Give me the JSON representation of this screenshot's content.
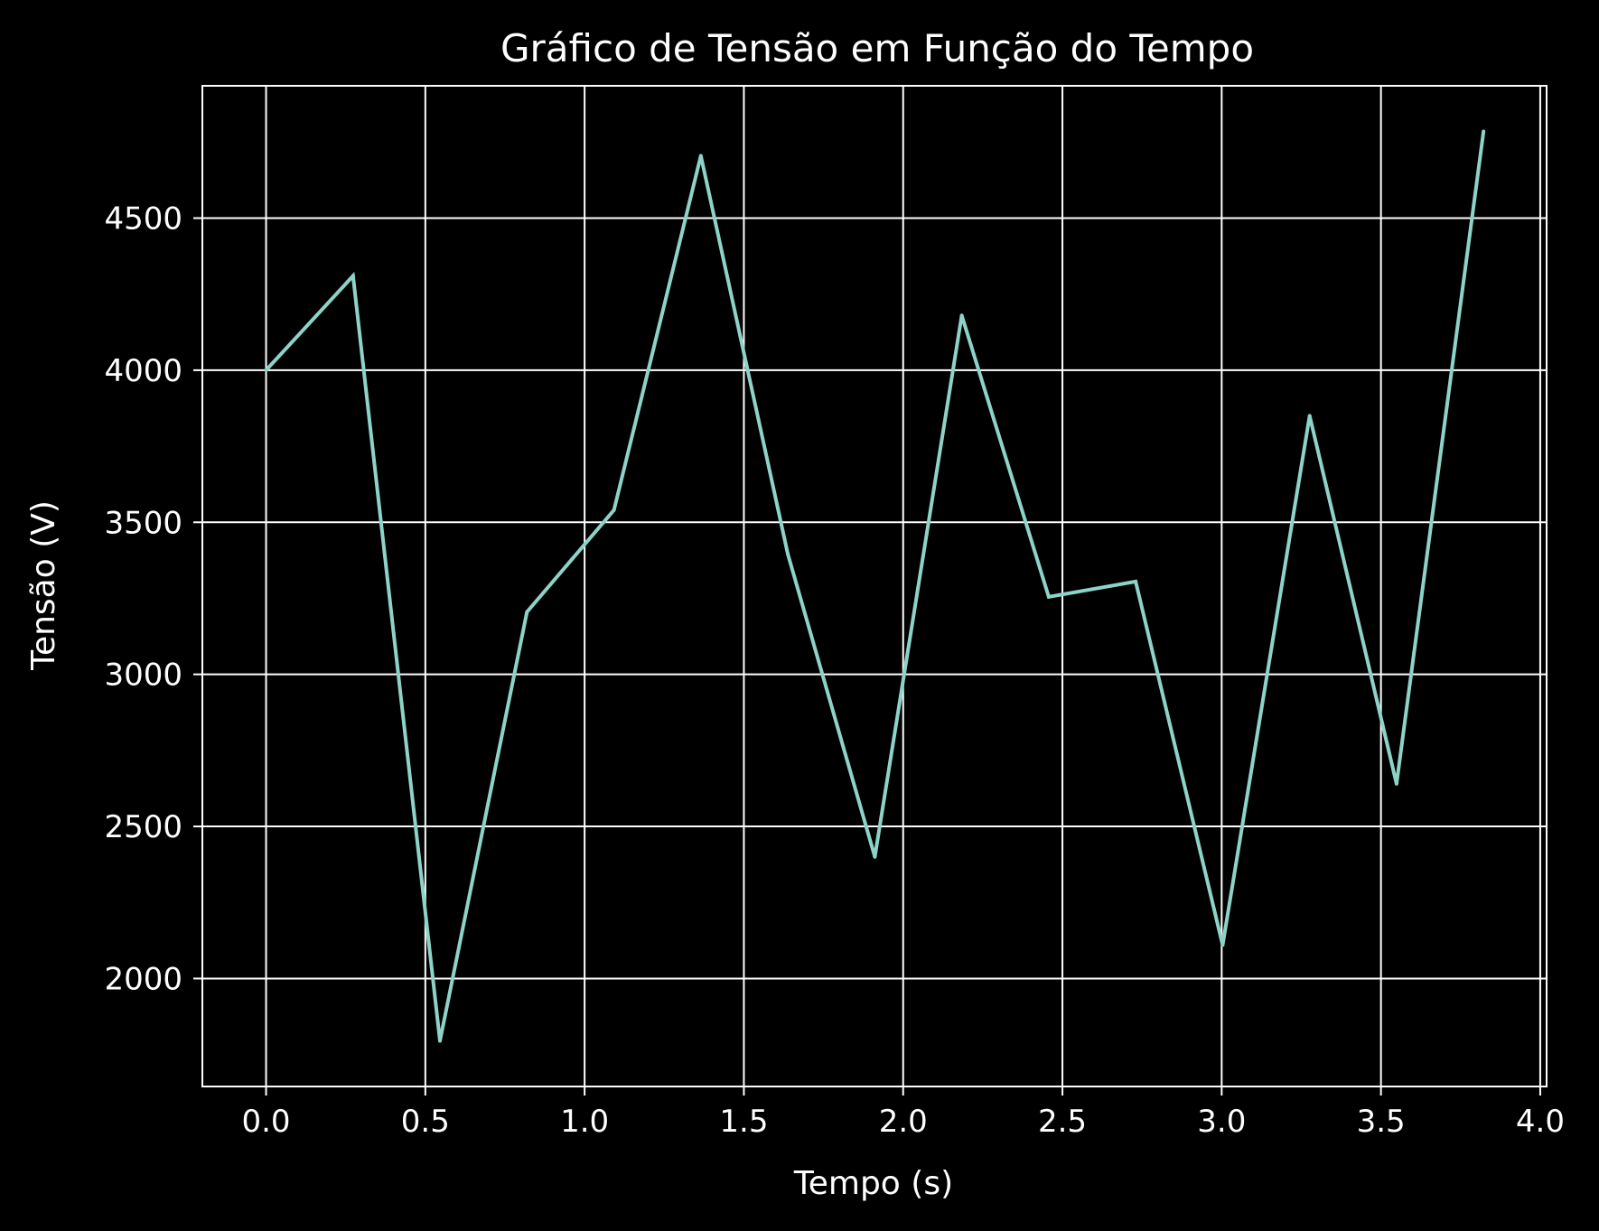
{
  "colors": {
    "background": "#000000",
    "foreground": "#ffffff",
    "line": "#8dd3c7"
  },
  "chart_data": {
    "type": "line",
    "title": "Gráfico de Tensão em Função do Tempo",
    "xlabel": "Tempo (s)",
    "ylabel": "Tensão (V)",
    "grid": true,
    "xlim": [
      -0.2,
      4.02
    ],
    "ylim": [
      1645,
      4935
    ],
    "xticks": [
      {
        "value": 0.0,
        "label": "0.0"
      },
      {
        "value": 0.5,
        "label": "0.5"
      },
      {
        "value": 1.0,
        "label": "1.0"
      },
      {
        "value": 1.5,
        "label": "1.5"
      },
      {
        "value": 2.0,
        "label": "2.0"
      },
      {
        "value": 2.5,
        "label": "2.5"
      },
      {
        "value": 3.0,
        "label": "3.0"
      },
      {
        "value": 3.5,
        "label": "3.5"
      },
      {
        "value": 4.0,
        "label": "4.0"
      }
    ],
    "yticks": [
      {
        "value": 2000,
        "label": "2000"
      },
      {
        "value": 2500,
        "label": "2500"
      },
      {
        "value": 3000,
        "label": "3000"
      },
      {
        "value": 3500,
        "label": "3500"
      },
      {
        "value": 4000,
        "label": "4000"
      },
      {
        "value": 4500,
        "label": "4500"
      }
    ],
    "series": [
      {
        "x": [
          0.0,
          0.273,
          0.546,
          0.819,
          1.092,
          1.365,
          1.638,
          1.911,
          2.184,
          2.457,
          2.73,
          3.003,
          3.276,
          3.549,
          3.822
        ],
        "y": [
          4000,
          4310,
          1795,
          3205,
          3540,
          4705,
          3395,
          2400,
          4180,
          3255,
          3305,
          2110,
          3850,
          2640,
          4785
        ]
      }
    ]
  }
}
